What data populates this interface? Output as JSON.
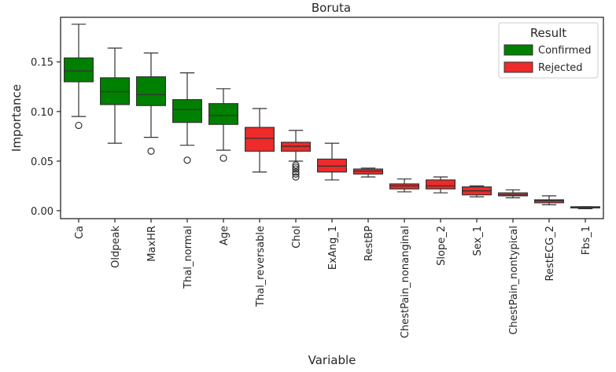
{
  "chart_data": {
    "type": "box",
    "title": "Boruta",
    "xlabel": "Variable",
    "ylabel": "Importance",
    "ylim": [
      -0.008,
      0.195
    ],
    "yticks": [
      0.0,
      0.05,
      0.1,
      0.15
    ],
    "ytick_labels": [
      "0.00",
      "0.05",
      "0.10",
      "0.15"
    ],
    "legend": {
      "title": "Result",
      "position": "top-right",
      "entries": [
        {
          "label": "Confirmed",
          "color": "#008000"
        },
        {
          "label": "Rejected",
          "color": "#ee2a2a"
        }
      ]
    },
    "colors": {
      "Confirmed": "#008000",
      "Rejected": "#ee2a2a"
    },
    "boxes": [
      {
        "name": "Ca",
        "result": "Confirmed",
        "whisker_low": 0.095,
        "q1": 0.13,
        "median": 0.141,
        "q3": 0.154,
        "whisker_high": 0.188,
        "outliers": [
          0.086
        ]
      },
      {
        "name": "Oldpeak",
        "result": "Confirmed",
        "whisker_low": 0.068,
        "q1": 0.107,
        "median": 0.12,
        "q3": 0.134,
        "whisker_high": 0.164,
        "outliers": []
      },
      {
        "name": "MaxHR",
        "result": "Confirmed",
        "whisker_low": 0.074,
        "q1": 0.106,
        "median": 0.117,
        "q3": 0.135,
        "whisker_high": 0.159,
        "outliers": [
          0.06
        ]
      },
      {
        "name": "Thal_normal",
        "result": "Confirmed",
        "whisker_low": 0.066,
        "q1": 0.089,
        "median": 0.102,
        "q3": 0.112,
        "whisker_high": 0.139,
        "outliers": [
          0.051
        ]
      },
      {
        "name": "Age",
        "result": "Confirmed",
        "whisker_low": 0.061,
        "q1": 0.087,
        "median": 0.096,
        "q3": 0.108,
        "whisker_high": 0.123,
        "outliers": [
          0.053
        ]
      },
      {
        "name": "Thal_reversable",
        "result": "Rejected",
        "whisker_low": 0.039,
        "q1": 0.06,
        "median": 0.073,
        "q3": 0.084,
        "whisker_high": 0.103,
        "outliers": []
      },
      {
        "name": "Chol",
        "result": "Rejected",
        "whisker_low": 0.05,
        "q1": 0.06,
        "median": 0.065,
        "q3": 0.069,
        "whisker_high": 0.081,
        "outliers": [
          0.046,
          0.044,
          0.042,
          0.039,
          0.037,
          0.034
        ]
      },
      {
        "name": "ExAng_1",
        "result": "Rejected",
        "whisker_low": 0.031,
        "q1": 0.039,
        "median": 0.045,
        "q3": 0.052,
        "whisker_high": 0.068,
        "outliers": []
      },
      {
        "name": "RestBP",
        "result": "Rejected",
        "whisker_low": 0.034,
        "q1": 0.037,
        "median": 0.04,
        "q3": 0.042,
        "whisker_high": 0.043,
        "outliers": []
      },
      {
        "name": "ChestPain_nonanginal",
        "result": "Rejected",
        "whisker_low": 0.019,
        "q1": 0.022,
        "median": 0.025,
        "q3": 0.027,
        "whisker_high": 0.032,
        "outliers": []
      },
      {
        "name": "Slope_2",
        "result": "Rejected",
        "whisker_low": 0.018,
        "q1": 0.022,
        "median": 0.025,
        "q3": 0.031,
        "whisker_high": 0.034,
        "outliers": []
      },
      {
        "name": "Sex_1",
        "result": "Rejected",
        "whisker_low": 0.014,
        "q1": 0.016,
        "median": 0.02,
        "q3": 0.024,
        "whisker_high": 0.025,
        "outliers": []
      },
      {
        "name": "ChestPain_nontypical",
        "result": "Rejected",
        "whisker_low": 0.013,
        "q1": 0.015,
        "median": 0.016,
        "q3": 0.018,
        "whisker_high": 0.021,
        "outliers": []
      },
      {
        "name": "RestECG_2",
        "result": "Rejected",
        "whisker_low": 0.006,
        "q1": 0.008,
        "median": 0.01,
        "q3": 0.011,
        "whisker_high": 0.015,
        "outliers": []
      },
      {
        "name": "Fbs_1",
        "result": "Rejected",
        "whisker_low": 0.002,
        "q1": 0.003,
        "median": 0.003,
        "q3": 0.004,
        "whisker_high": 0.004,
        "outliers": []
      }
    ]
  }
}
